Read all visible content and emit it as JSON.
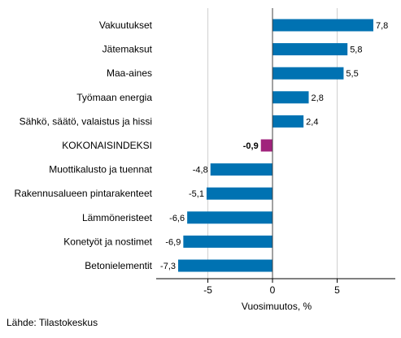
{
  "chart_data": {
    "type": "bar",
    "orientation": "horizontal",
    "categories": [
      "Vakuutukset",
      "Jätemaksut",
      "Maa-aines",
      "Työmaan energia",
      "Sähkö, säätö, valaistus ja hissi",
      "KOKONAISINDEKSI",
      "Muottikalusto ja tuennat",
      "Rakennusalueen pintarakenteet",
      "Lämmöneristeet",
      "Konetyöt ja nostimet",
      "Betonielementit"
    ],
    "values": [
      7.8,
      5.8,
      5.5,
      2.8,
      2.4,
      -0.9,
      -4.8,
      -5.1,
      -6.6,
      -6.9,
      -7.3
    ],
    "value_labels": [
      "7,8",
      "5,8",
      "5,5",
      "2,8",
      "2,4",
      "-0,9",
      "-4,8",
      "-5,1",
      "-6,6",
      "-6,9",
      "-7,3"
    ],
    "highlight_category": "KOKONAISINDEKSI",
    "xlabel": "Vuosimuutos, %",
    "xlim": [
      -9,
      9.5
    ],
    "xticks": [
      -5,
      0,
      5
    ],
    "xtick_labels": [
      "-5",
      "0",
      "5"
    ],
    "grid": "vertical",
    "colors": {
      "bar": "#0072b2",
      "highlight": "#a0237c",
      "grid": "#d0d0d0",
      "axis": "#000000"
    }
  },
  "source": "Lähde: Tilastokeskus"
}
